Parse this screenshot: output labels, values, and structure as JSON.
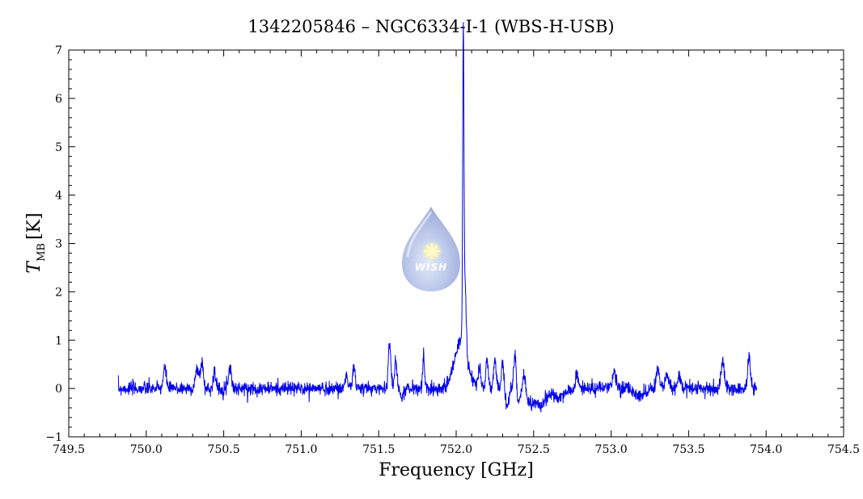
{
  "chart_data": {
    "type": "line",
    "title": "1342205846 – NGC6334-I-1 (WBS-H-USB)",
    "xlabel": "Frequency [GHz]",
    "ylabel": {
      "symbol": "T",
      "subscript": "MB",
      "unit": "[K]"
    },
    "xlim": [
      749.5,
      754.5
    ],
    "ylim": [
      -1,
      7
    ],
    "x_ticks": [
      "749.5",
      "750.0",
      "750.5",
      "751.0",
      "751.5",
      "752.0",
      "752.5",
      "753.0",
      "753.5",
      "754.0",
      "754.5"
    ],
    "y_ticks": [
      "−1",
      "0",
      "1",
      "2",
      "3",
      "4",
      "5",
      "6",
      "7"
    ],
    "grid": false,
    "line_color": "#0000ee",
    "series": [
      {
        "x_range": [
          749.82,
          753.94
        ],
        "baseline": 0.0,
        "noise_rms": 0.07,
        "peaks": [
          {
            "x": 750.12,
            "y": 0.4,
            "w": 0.01
          },
          {
            "x": 750.33,
            "y": 0.4,
            "w": 0.012
          },
          {
            "x": 750.36,
            "y": 0.55,
            "w": 0.008
          },
          {
            "x": 750.44,
            "y": 0.35,
            "w": 0.008
          },
          {
            "x": 750.54,
            "y": 0.45,
            "w": 0.01
          },
          {
            "x": 751.29,
            "y": 0.3,
            "w": 0.008
          },
          {
            "x": 751.34,
            "y": 0.45,
            "w": 0.008
          },
          {
            "x": 751.57,
            "y": 0.95,
            "w": 0.008
          },
          {
            "x": 751.61,
            "y": 0.6,
            "w": 0.008
          },
          {
            "x": 751.79,
            "y": 0.65,
            "w": 0.006
          },
          {
            "x": 752.03,
            "y": 1.0,
            "w": 0.04
          },
          {
            "x": 752.046,
            "y": 6.3,
            "w": 0.004
          },
          {
            "x": 752.058,
            "y": 1.4,
            "w": 0.007
          },
          {
            "x": 752.15,
            "y": 0.45,
            "w": 0.008
          },
          {
            "x": 752.2,
            "y": 0.6,
            "w": 0.008
          },
          {
            "x": 752.25,
            "y": 0.55,
            "w": 0.008
          },
          {
            "x": 752.3,
            "y": 0.55,
            "w": 0.008
          },
          {
            "x": 752.38,
            "y": 0.75,
            "w": 0.008
          },
          {
            "x": 752.44,
            "y": 0.45,
            "w": 0.008
          },
          {
            "x": 752.78,
            "y": 0.3,
            "w": 0.008
          },
          {
            "x": 753.02,
            "y": 0.4,
            "w": 0.01
          },
          {
            "x": 753.3,
            "y": 0.4,
            "w": 0.01
          },
          {
            "x": 753.36,
            "y": 0.3,
            "w": 0.01
          },
          {
            "x": 753.44,
            "y": 0.3,
            "w": 0.01
          },
          {
            "x": 753.72,
            "y": 0.55,
            "w": 0.01
          },
          {
            "x": 753.89,
            "y": 0.7,
            "w": 0.008
          }
        ],
        "dips": [
          {
            "x": 751.65,
            "y": -0.2,
            "w": 0.01
          },
          {
            "x": 752.33,
            "y": -0.35,
            "w": 0.01
          },
          {
            "x": 752.4,
            "y": -0.35,
            "w": 0.01
          },
          {
            "x": 752.48,
            "y": -0.3,
            "w": 0.03
          },
          {
            "x": 752.55,
            "y": -0.3,
            "w": 0.03
          },
          {
            "x": 752.66,
            "y": -0.2,
            "w": 0.04
          },
          {
            "x": 753.18,
            "y": -0.15,
            "w": 0.03
          }
        ]
      }
    ]
  },
  "logo": {
    "text": "WISH"
  }
}
